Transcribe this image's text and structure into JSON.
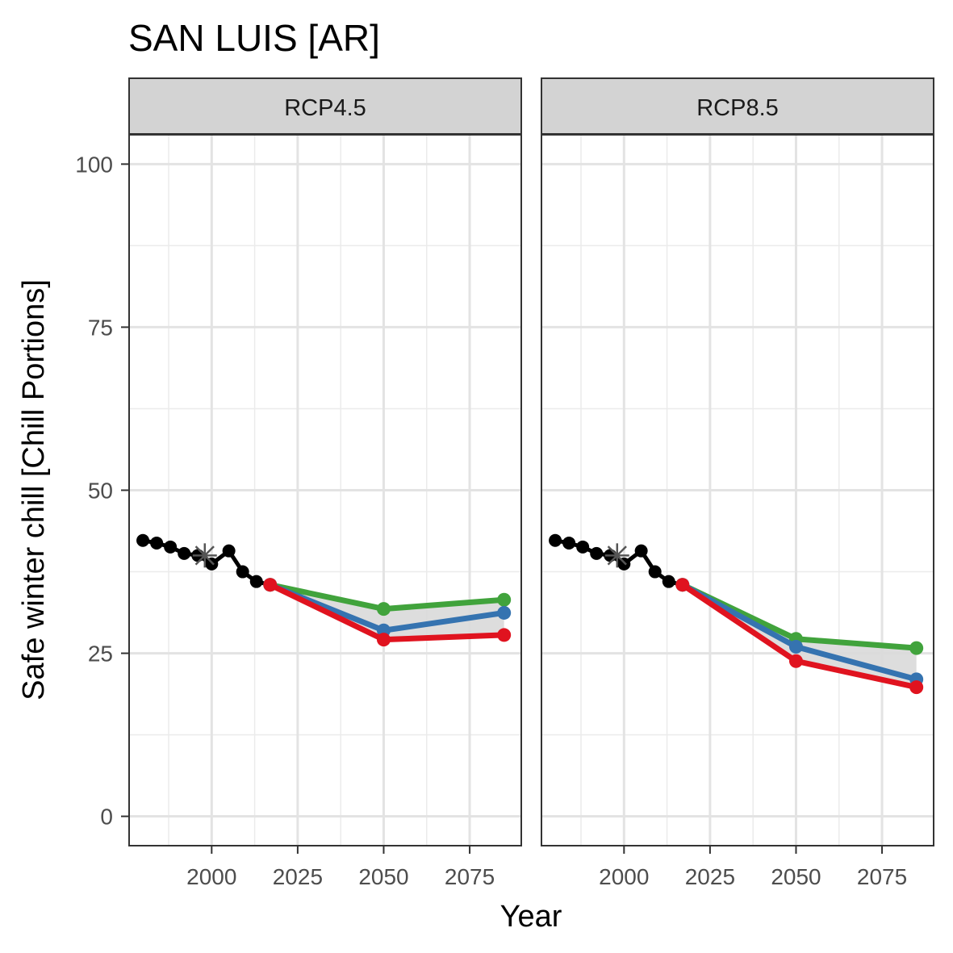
{
  "chart_data": {
    "type": "line",
    "title": "SAN LUIS [AR]",
    "xlabel": "Year",
    "ylabel": "Safe winter chill [Chill Portions]",
    "xlim": [
      1976,
      2090
    ],
    "ylim": [
      -4.5,
      104.5
    ],
    "x_ticks": [
      2000,
      2025,
      2050,
      2075
    ],
    "y_ticks": [
      0,
      25,
      50,
      75,
      100
    ],
    "grid": true,
    "legend": "none",
    "colors": {
      "historic": "#000000",
      "baseline_marker": "#555555",
      "optimistic": "#41a33c",
      "median": "#3573b0",
      "pessimistic": "#e0131f",
      "range_fill": "#d9d9d9"
    },
    "panels": [
      {
        "label": "RCP4.5",
        "historic": {
          "x": [
            1980,
            1984,
            1988,
            1992,
            1996,
            2000,
            2005,
            2009,
            2013,
            2017
          ],
          "y": [
            42.3,
            41.9,
            41.3,
            40.3,
            40.0,
            38.7,
            40.7,
            37.5,
            36.0,
            35.5
          ]
        },
        "baseline": {
          "x": 1998,
          "y": 40.0
        },
        "scenarios": [
          {
            "x": [
              2017,
              2050,
              2085
            ],
            "y": [
              35.5,
              31.8,
              33.2
            ],
            "color": "#41a33c"
          },
          {
            "x": [
              2017,
              2050,
              2085
            ],
            "y": [
              35.5,
              28.5,
              31.2
            ],
            "color": "#3573b0"
          },
          {
            "x": [
              2017,
              2050,
              2085
            ],
            "y": [
              35.5,
              27.1,
              27.8
            ],
            "color": "#e0131f"
          }
        ]
      },
      {
        "label": "RCP8.5",
        "historic": {
          "x": [
            1980,
            1984,
            1988,
            1992,
            1996,
            2000,
            2005,
            2009,
            2013,
            2017
          ],
          "y": [
            42.3,
            41.9,
            41.3,
            40.3,
            40.0,
            38.7,
            40.7,
            37.5,
            36.0,
            35.5
          ]
        },
        "baseline": {
          "x": 1998,
          "y": 40.0
        },
        "scenarios": [
          {
            "x": [
              2017,
              2050,
              2085
            ],
            "y": [
              35.5,
              27.2,
              25.8
            ],
            "color": "#41a33c"
          },
          {
            "x": [
              2017,
              2050,
              2085
            ],
            "y": [
              35.5,
              26.0,
              21.0
            ],
            "color": "#3573b0"
          },
          {
            "x": [
              2017,
              2050,
              2085
            ],
            "y": [
              35.5,
              23.8,
              19.8
            ],
            "color": "#e0131f"
          }
        ]
      }
    ]
  }
}
